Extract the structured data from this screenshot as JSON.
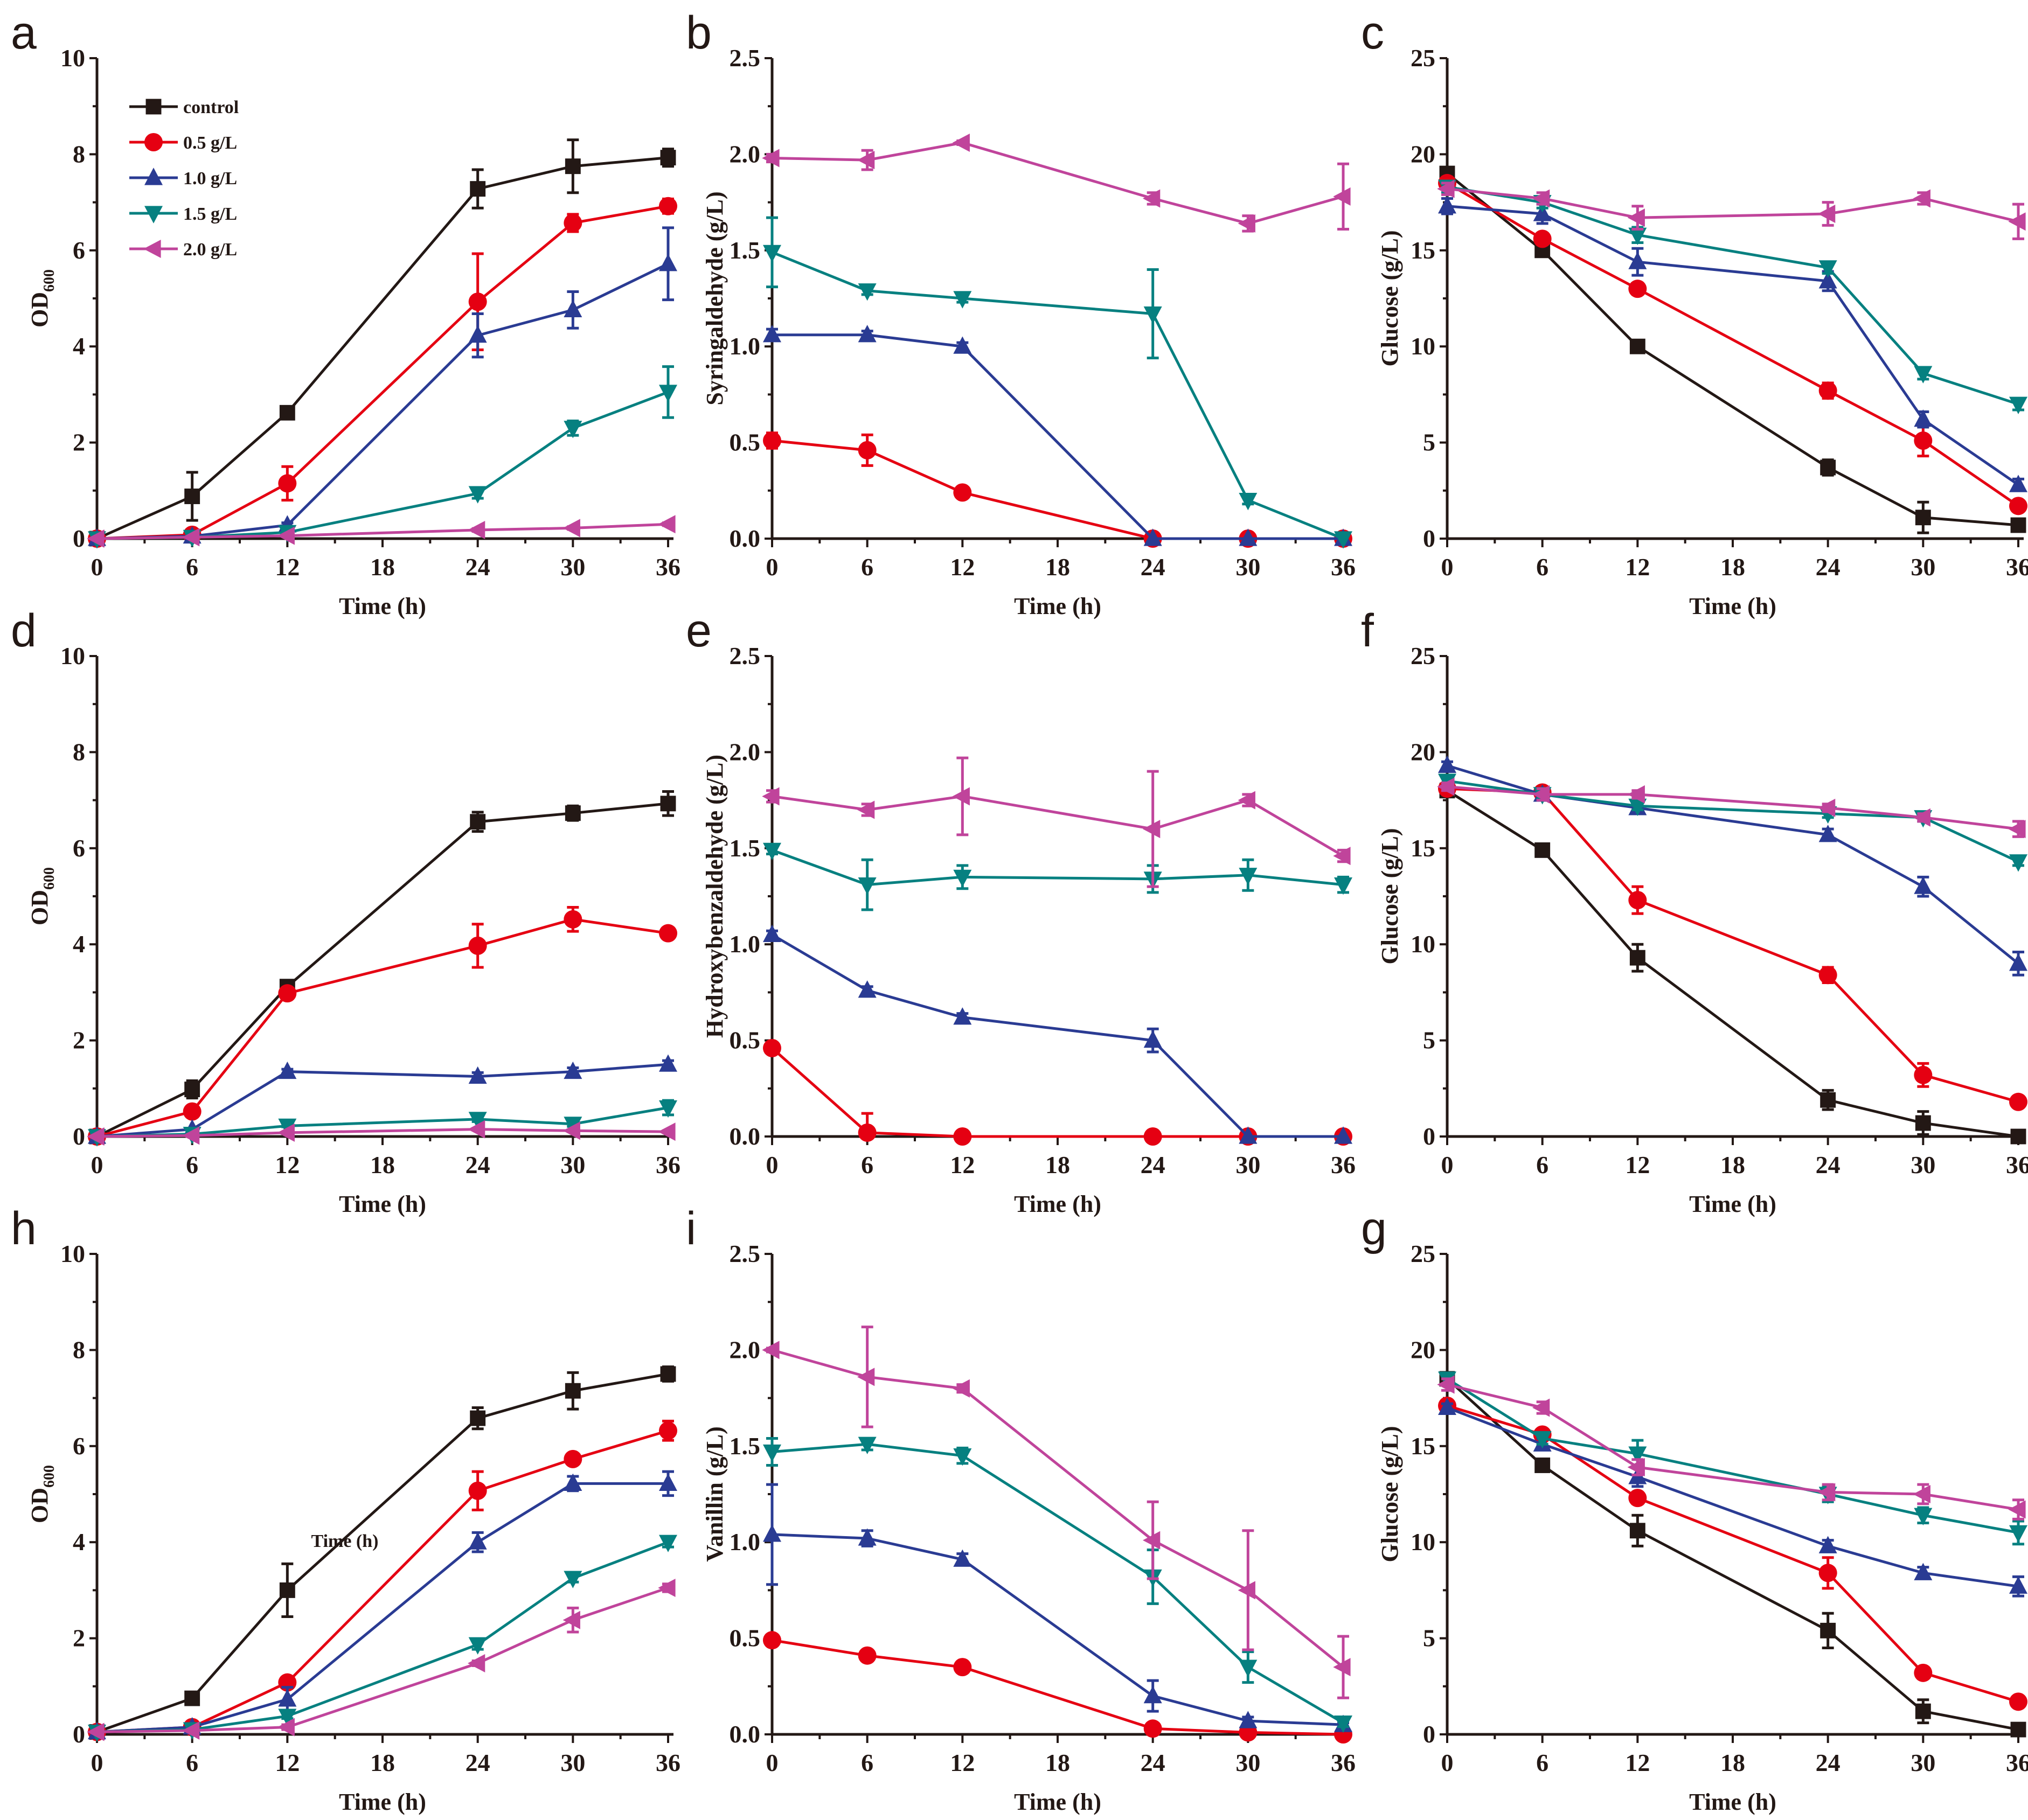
{
  "colors": {
    "control": "#231815",
    "0.5 g/L": "#e50012",
    "1.0 g/L": "#2a3b93",
    "1.5 g/L": "#068080",
    "2.0 g/L": "#c0449b"
  },
  "markers": {
    "control": "square",
    "0.5 g/L": "circle",
    "1.0 g/L": "triangle-up",
    "1.5 g/L": "triangle-down",
    "2.0 g/L": "triangle-left"
  },
  "chart_data": [
    {
      "panel": "a",
      "type": "line",
      "xlabel": "Time (h)",
      "ylabel": "OD",
      "ylabel_sub": "600",
      "ylim": [
        0,
        10
      ],
      "yticks": [
        0,
        2,
        4,
        6,
        8,
        10
      ],
      "xlim": [
        0,
        36
      ],
      "xticks": [
        0,
        6,
        12,
        18,
        24,
        30,
        36
      ],
      "legend": "top-left",
      "legend_entries": [
        "control",
        "0.5 g/L",
        "1.0 g/L",
        "1.5 g/L",
        "2.0 g/L"
      ],
      "x": [
        0,
        6,
        12,
        24,
        30,
        36
      ],
      "series": [
        {
          "name": "control",
          "values": [
            0,
            0.88,
            2.62,
            7.28,
            7.75,
            7.93
          ],
          "err": [
            0,
            0.5,
            0.1,
            0.4,
            0.55,
            0.18
          ]
        },
        {
          "name": "0.5 g/L",
          "values": [
            0,
            0.08,
            1.15,
            4.93,
            6.57,
            6.92
          ],
          "err": [
            0,
            0.05,
            0.35,
            1.0,
            0.18,
            0.15
          ]
        },
        {
          "name": "1.0 g/L",
          "values": [
            0,
            0.05,
            0.28,
            4.23,
            4.76,
            5.72
          ],
          "err": [
            0,
            0,
            0.05,
            0.45,
            0.38,
            0.75
          ]
        },
        {
          "name": "1.5 g/L",
          "values": [
            0,
            0.03,
            0.13,
            0.94,
            2.3,
            3.05
          ],
          "err": [
            0,
            0,
            0,
            0.1,
            0.15,
            0.53
          ]
        },
        {
          "name": "2.0 g/L",
          "values": [
            0,
            0.03,
            0.06,
            0.18,
            0.22,
            0.3
          ],
          "err": [
            0,
            0,
            0,
            0.03,
            0.03,
            0.03
          ]
        }
      ]
    },
    {
      "panel": "b",
      "type": "line",
      "xlabel": "Time (h)",
      "ylabel": "Syringaldehyde (g/L)",
      "ylim": [
        0,
        2.5
      ],
      "yticks": [
        0.0,
        0.5,
        1.0,
        1.5,
        2.0,
        2.5
      ],
      "xlim": [
        0,
        36
      ],
      "xticks": [
        0,
        6,
        12,
        18,
        24,
        30,
        36
      ],
      "x": [
        0,
        6,
        12,
        24,
        30,
        36
      ],
      "series": [
        {
          "name": "0.5 g/L",
          "values": [
            0.51,
            0.46,
            0.24,
            0,
            0,
            0
          ],
          "err": [
            0.04,
            0.08,
            0.02,
            0,
            0,
            0
          ]
        },
        {
          "name": "1.0 g/L",
          "values": [
            1.06,
            1.06,
            1.0,
            0,
            0,
            0
          ],
          "err": [
            0.03,
            0.02,
            0.02,
            0,
            0,
            0
          ]
        },
        {
          "name": "1.5 g/L",
          "values": [
            1.49,
            1.29,
            1.25,
            1.17,
            0.2,
            0
          ],
          "err": [
            0.18,
            0.02,
            0.02,
            0.23,
            0.02,
            0
          ]
        },
        {
          "name": "2.0 g/L",
          "values": [
            1.98,
            1.97,
            2.06,
            1.77,
            1.64,
            1.78
          ],
          "err": [
            0.02,
            0.05,
            0.01,
            0.03,
            0.04,
            0.17
          ]
        }
      ]
    },
    {
      "panel": "c",
      "type": "line",
      "xlabel": "Time (h)",
      "ylabel": "Glucose (g/L)",
      "ylim": [
        0,
        25
      ],
      "yticks": [
        0,
        5,
        10,
        15,
        20,
        25
      ],
      "xlim": [
        0,
        36
      ],
      "xticks": [
        0,
        6,
        12,
        18,
        24,
        30,
        36
      ],
      "x": [
        0,
        6,
        12,
        24,
        30,
        36
      ],
      "series": [
        {
          "name": "control",
          "values": [
            19.0,
            15.0,
            10.0,
            3.7,
            1.1,
            0.7
          ],
          "err": [
            0.2,
            0.2,
            0.2,
            0.4,
            0.8,
            0.2
          ]
        },
        {
          "name": "0.5 g/L",
          "values": [
            18.5,
            15.6,
            13.0,
            7.7,
            5.1,
            1.7
          ],
          "err": [
            0.3,
            0.3,
            0.3,
            0.4,
            0.8,
            0.2
          ]
        },
        {
          "name": "1.0 g/L",
          "values": [
            17.3,
            16.9,
            14.4,
            13.4,
            6.2,
            2.8
          ],
          "err": [
            0.4,
            0.5,
            0.7,
            0.5,
            0.4,
            0.3
          ]
        },
        {
          "name": "1.5 g/L",
          "values": [
            18.3,
            17.5,
            15.8,
            14.1,
            8.6,
            7.0
          ],
          "err": [
            0.3,
            0.3,
            0.4,
            0.3,
            0.3,
            0.3
          ]
        },
        {
          "name": "2.0 g/L",
          "values": [
            18.2,
            17.7,
            16.7,
            16.9,
            17.7,
            16.5
          ],
          "err": [
            0.3,
            0.3,
            0.6,
            0.6,
            0.3,
            0.9
          ]
        }
      ]
    },
    {
      "panel": "d",
      "type": "line",
      "xlabel": "Time (h)",
      "ylabel": "OD",
      "ylabel_sub": "600",
      "ylim": [
        0,
        10
      ],
      "yticks": [
        0,
        2,
        4,
        6,
        8,
        10
      ],
      "xlim": [
        0,
        36
      ],
      "xticks": [
        0,
        6,
        12,
        18,
        24,
        30,
        36
      ],
      "x": [
        0,
        6,
        12,
        24,
        30,
        36
      ],
      "series": [
        {
          "name": "control",
          "values": [
            0,
            0.98,
            3.12,
            6.55,
            6.73,
            6.93
          ],
          "err": [
            0,
            0.18,
            0.05,
            0.2,
            0.15,
            0.25
          ]
        },
        {
          "name": "0.5 g/L",
          "values": [
            0,
            0.52,
            2.98,
            3.97,
            4.52,
            4.23
          ],
          "err": [
            0,
            0.05,
            0.05,
            0.45,
            0.25,
            0.05
          ]
        },
        {
          "name": "1.0 g/L",
          "values": [
            0,
            0.15,
            1.35,
            1.25,
            1.35,
            1.5
          ],
          "err": [
            0,
            0.02,
            0.05,
            0.08,
            0.08,
            0.08
          ]
        },
        {
          "name": "1.5 g/L",
          "values": [
            0,
            0.05,
            0.22,
            0.36,
            0.26,
            0.6
          ],
          "err": [
            0,
            0,
            0.02,
            0.05,
            0.05,
            0.15
          ]
        },
        {
          "name": "2.0 g/L",
          "values": [
            0,
            0.02,
            0.08,
            0.15,
            0.12,
            0.1
          ],
          "err": [
            0,
            0,
            0,
            0.02,
            0.02,
            0.02
          ]
        }
      ]
    },
    {
      "panel": "e",
      "type": "line",
      "xlabel": "Time (h)",
      "ylabel": "Hydroxybenzaldehyde (g/L)",
      "ylim": [
        0,
        2.5
      ],
      "yticks": [
        0.0,
        0.5,
        1.0,
        1.5,
        2.0,
        2.5
      ],
      "xlim": [
        0,
        36
      ],
      "xticks": [
        0,
        6,
        12,
        18,
        24,
        30,
        36
      ],
      "x": [
        0,
        6,
        12,
        24,
        30,
        36
      ],
      "series": [
        {
          "name": "0.5 g/L",
          "values": [
            0.46,
            0.02,
            0,
            0,
            0,
            0
          ],
          "err": [
            0.02,
            0.1,
            0,
            0,
            0,
            0
          ]
        },
        {
          "name": "1.0 g/L",
          "values": [
            1.05,
            0.76,
            0.62,
            0.5,
            0,
            0
          ],
          "err": [
            0.02,
            0.02,
            0.02,
            0.06,
            0,
            0
          ]
        },
        {
          "name": "1.5 g/L",
          "values": [
            1.49,
            1.31,
            1.35,
            1.34,
            1.36,
            1.31
          ],
          "err": [
            0.02,
            0.13,
            0.06,
            0.07,
            0.08,
            0.04
          ]
        },
        {
          "name": "2.0 g/L",
          "values": [
            1.77,
            1.7,
            1.77,
            1.6,
            1.75,
            1.46
          ],
          "err": [
            0.03,
            0.03,
            0.2,
            0.3,
            0.03,
            0.03
          ]
        }
      ]
    },
    {
      "panel": "f",
      "type": "line",
      "xlabel": "Time (h)",
      "ylabel": "Glucose (g/L)",
      "ylim": [
        0,
        25
      ],
      "yticks": [
        0,
        5,
        10,
        15,
        20,
        25
      ],
      "xlim": [
        0,
        36
      ],
      "xticks": [
        0,
        6,
        12,
        18,
        24,
        30,
        36
      ],
      "x": [
        0,
        6,
        12,
        24,
        30,
        36
      ],
      "series": [
        {
          "name": "control",
          "values": [
            18.0,
            14.9,
            9.3,
            1.9,
            0.7,
            0
          ],
          "err": [
            0.2,
            0.2,
            0.7,
            0.5,
            0.6,
            0.1
          ]
        },
        {
          "name": "0.5 g/L",
          "values": [
            18.1,
            17.9,
            12.3,
            8.4,
            3.2,
            1.8
          ],
          "err": [
            0.2,
            0.3,
            0.7,
            0.4,
            0.6,
            0.2
          ]
        },
        {
          "name": "1.0 g/L",
          "values": [
            19.3,
            17.8,
            17.1,
            15.7,
            13.0,
            9.0
          ],
          "err": [
            0.2,
            0.3,
            0.3,
            0.3,
            0.5,
            0.6
          ]
        },
        {
          "name": "1.5 g/L",
          "values": [
            18.5,
            17.8,
            17.2,
            16.8,
            16.6,
            14.3
          ],
          "err": [
            0.2,
            0.2,
            0.2,
            0.2,
            0.2,
            0.2
          ]
        },
        {
          "name": "2.0 g/L",
          "values": [
            18.2,
            17.8,
            17.8,
            17.1,
            16.6,
            16.0
          ],
          "err": [
            0.2,
            0.3,
            0.2,
            0.2,
            0.2,
            0.4
          ]
        }
      ]
    },
    {
      "panel": "h",
      "type": "line",
      "xlabel": "Time (h)",
      "ylabel": "OD",
      "ylabel_sub": "600",
      "ylim": [
        0,
        10
      ],
      "yticks": [
        0,
        2,
        4,
        6,
        8,
        10
      ],
      "xlim": [
        0,
        36
      ],
      "xticks": [
        0,
        6,
        12,
        18,
        24,
        30,
        36
      ],
      "annotation": "Time (h)",
      "x": [
        0,
        6,
        12,
        24,
        30,
        36
      ],
      "series": [
        {
          "name": "control",
          "values": [
            0.05,
            0.75,
            3.0,
            6.58,
            7.15,
            7.5
          ],
          "err": [
            0,
            0.05,
            0.55,
            0.22,
            0.38,
            0.15
          ]
        },
        {
          "name": "0.5 g/L",
          "values": [
            0.05,
            0.15,
            1.08,
            5.07,
            5.73,
            6.32
          ],
          "err": [
            0,
            0.02,
            0.08,
            0.4,
            0.08,
            0.2
          ]
        },
        {
          "name": "1.0 g/L",
          "values": [
            0.05,
            0.15,
            0.73,
            4.0,
            5.22,
            5.22
          ],
          "err": [
            0,
            0.02,
            0.25,
            0.2,
            0.15,
            0.25
          ]
        },
        {
          "name": "1.5 g/L",
          "values": [
            0.05,
            0.1,
            0.38,
            1.87,
            3.25,
            4.0
          ],
          "err": [
            0,
            0.02,
            0.05,
            0.1,
            0.08,
            0.1
          ]
        },
        {
          "name": "2.0 g/L",
          "values": [
            0.05,
            0.08,
            0.15,
            1.48,
            2.38,
            3.05
          ],
          "err": [
            0,
            0.02,
            0.05,
            0.05,
            0.25,
            0.08
          ]
        }
      ]
    },
    {
      "panel": "i",
      "type": "line",
      "xlabel": "Time (h)",
      "ylabel": "Vanillin (g/L)",
      "ylim": [
        0,
        2.5
      ],
      "yticks": [
        0.0,
        0.5,
        1.0,
        1.5,
        2.0,
        2.5
      ],
      "xlim": [
        0,
        36
      ],
      "xticks": [
        0,
        6,
        12,
        18,
        24,
        30,
        36
      ],
      "x": [
        0,
        6,
        12,
        24,
        30,
        36
      ],
      "series": [
        {
          "name": "0.5 g/L",
          "values": [
            0.49,
            0.41,
            0.35,
            0.03,
            0.01,
            0.0
          ],
          "err": [
            0.01,
            0.01,
            0.01,
            0.01,
            0.01,
            0.01
          ]
        },
        {
          "name": "1.0 g/L",
          "values": [
            1.04,
            1.02,
            0.91,
            0.2,
            0.07,
            0.05
          ],
          "err": [
            0.26,
            0.04,
            0.03,
            0.08,
            0.02,
            0.01
          ]
        },
        {
          "name": "1.5 g/L",
          "values": [
            1.47,
            1.51,
            1.45,
            0.82,
            0.35,
            0.06
          ],
          "err": [
            0.07,
            0.03,
            0.04,
            0.14,
            0.08,
            0.02
          ]
        },
        {
          "name": "2.0 g/L",
          "values": [
            2.0,
            1.86,
            1.8,
            1.01,
            0.75,
            0.35
          ],
          "err": [
            0.01,
            0.26,
            0.02,
            0.2,
            0.31,
            0.16
          ]
        }
      ]
    },
    {
      "panel": "g",
      "type": "line",
      "xlabel": "Time (h)",
      "ylabel": "Glucose (g/L)",
      "ylim": [
        0,
        25
      ],
      "yticks": [
        0,
        5,
        10,
        15,
        20,
        25
      ],
      "xlim": [
        0,
        36
      ],
      "xticks": [
        0,
        6,
        12,
        18,
        24,
        30,
        36
      ],
      "x": [
        0,
        6,
        12,
        24,
        30,
        36
      ],
      "series": [
        {
          "name": "control",
          "values": [
            18.5,
            14.0,
            10.6,
            5.4,
            1.2,
            0.25
          ],
          "err": [
            0.3,
            0.2,
            0.8,
            0.9,
            0.6,
            0.1
          ]
        },
        {
          "name": "0.5 g/L",
          "values": [
            17.1,
            15.6,
            12.3,
            8.4,
            3.2,
            1.7
          ],
          "err": [
            0.3,
            0.2,
            0.3,
            0.8,
            0.3,
            0.2
          ]
        },
        {
          "name": "1.0 g/L",
          "values": [
            17.0,
            15.1,
            13.4,
            9.8,
            8.4,
            7.7
          ],
          "err": [
            0.2,
            0.3,
            0.5,
            0.3,
            0.3,
            0.5
          ]
        },
        {
          "name": "1.5 g/L",
          "values": [
            18.5,
            15.4,
            14.6,
            12.5,
            11.4,
            10.5
          ],
          "err": [
            0.3,
            0.3,
            0.7,
            0.4,
            0.4,
            0.6
          ]
        },
        {
          "name": "2.0 g/L",
          "values": [
            18.2,
            17.0,
            13.9,
            12.6,
            12.5,
            11.7
          ],
          "err": [
            0.3,
            0.3,
            0.4,
            0.4,
            0.5,
            0.5
          ]
        }
      ]
    }
  ]
}
